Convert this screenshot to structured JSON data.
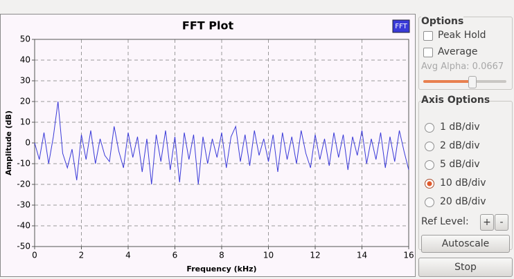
{
  "chart_data": {
    "type": "line",
    "title": "FFT Plot",
    "x_label": "Frequency (kHz)",
    "y_label": "Amplitude (dB)",
    "x": [
      0.0,
      0.2,
      0.4,
      0.6,
      0.8,
      1.0,
      1.2,
      1.4,
      1.6,
      1.8,
      2.0,
      2.2,
      2.4,
      2.6,
      2.8,
      3.0,
      3.2,
      3.4,
      3.6,
      3.8,
      4.0,
      4.2,
      4.4,
      4.6,
      4.8,
      5.0,
      5.2,
      5.4,
      5.6,
      5.8,
      6.0,
      6.2,
      6.4,
      6.6,
      6.8,
      7.0,
      7.2,
      7.4,
      7.6,
      7.8,
      8.0,
      8.2,
      8.4,
      8.6,
      8.8,
      9.0,
      9.2,
      9.4,
      9.6,
      9.8,
      10.0,
      10.2,
      10.4,
      10.6,
      10.8,
      11.0,
      11.2,
      11.4,
      11.6,
      11.8,
      12.0,
      12.2,
      12.4,
      12.6,
      12.8,
      13.0,
      13.2,
      13.4,
      13.6,
      13.8,
      14.0,
      14.2,
      14.4,
      14.6,
      14.8,
      15.0,
      15.2,
      15.4,
      15.6,
      15.8,
      16.0
    ],
    "series": [
      {
        "name": "FFT",
        "color": "#3a3ad8",
        "values": [
          0,
          -8,
          5,
          -10,
          3,
          20,
          -5,
          -12,
          -3,
          -18,
          4,
          -8,
          6,
          -10,
          2,
          -6,
          -9,
          8,
          -4,
          -12,
          5,
          -7,
          3,
          -14,
          2,
          -20,
          4,
          -9,
          6,
          -13,
          3,
          -19,
          5,
          -8,
          4,
          -20,
          3,
          -10,
          2,
          -7,
          5,
          -12,
          3,
          8,
          -9,
          4,
          -11,
          6,
          -6,
          2,
          -9,
          4,
          -14,
          5,
          -8,
          3,
          -10,
          6,
          -5,
          -12,
          4,
          -8,
          2,
          -11,
          5,
          -7,
          4,
          -13,
          3,
          -6,
          6,
          -10,
          2,
          -8,
          5,
          -12,
          3,
          -9,
          6,
          -4,
          -13
        ]
      }
    ],
    "xlim": [
      0,
      16
    ],
    "xticks": [
      0,
      2,
      4,
      6,
      8,
      10,
      12,
      14,
      16
    ],
    "ylim": [
      -50,
      50
    ],
    "yticks": [
      -50,
      -40,
      -30,
      -20,
      -10,
      0,
      10,
      20,
      30,
      40,
      50
    ],
    "grid": true,
    "legend": "top-right"
  },
  "panel": {
    "options_title": "Options",
    "peak_hold": "Peak Hold",
    "average": "Average",
    "avg_alpha": "Avg Alpha: 0.0667",
    "axis_options_title": "Axis Options",
    "scales": [
      "1 dB/div",
      "2 dB/div",
      "5 dB/div",
      "10 dB/div",
      "20 dB/div"
    ],
    "selected_scale": 3,
    "ref_level": "Ref Level:",
    "ref_plus": "+",
    "ref_minus": "-",
    "autoscale": "Autoscale",
    "stop": "Stop"
  }
}
